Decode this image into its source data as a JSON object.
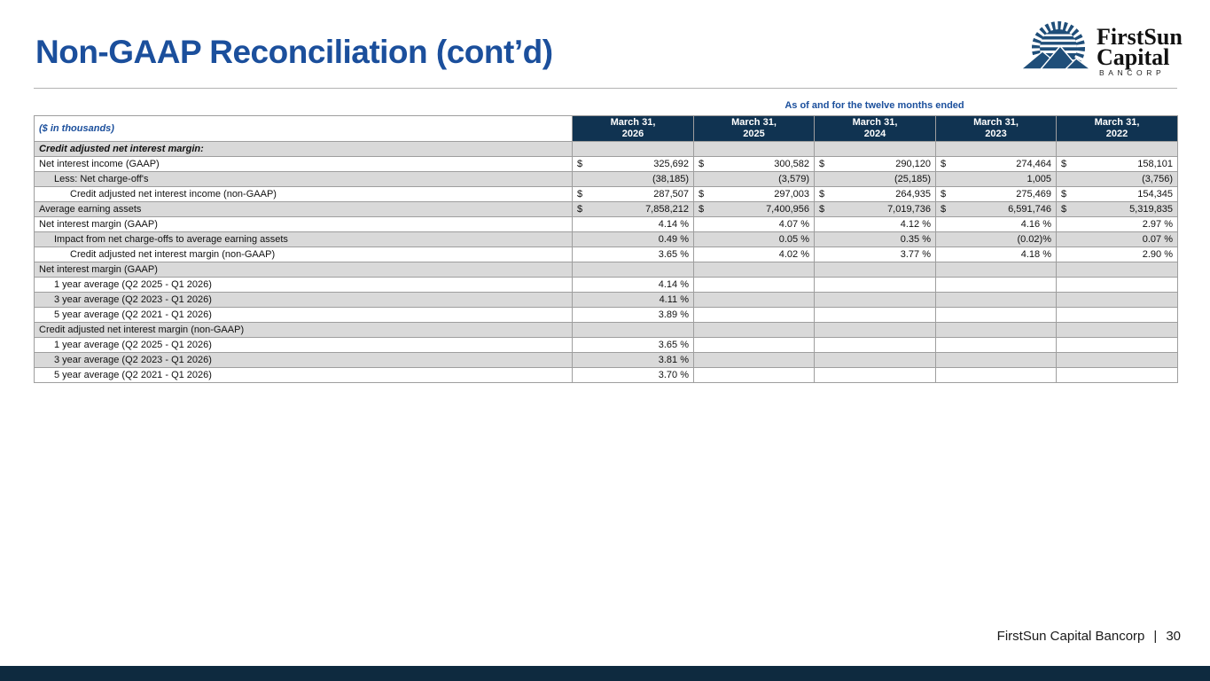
{
  "slide": {
    "title": "Non-GAAP Reconciliation (cont’d)",
    "footer_company": "FirstSun Capital Bancorp",
    "footer_separator": "|",
    "page_number": "30"
  },
  "logo": {
    "icon": "sun-over-mountains-icon",
    "name_line1": "FirstSun",
    "name_line2": "Capital",
    "name_line3": "BANCORP"
  },
  "colors": {
    "title_blue": "#1b4f9c",
    "table_header_navy": "#103351",
    "bottom_bar_navy": "#0e2a3f",
    "row_stripe_gray": "#d9d9d9",
    "grid_silver": "#9e9e9e",
    "logo_navy": "#1f4e79"
  },
  "table": {
    "caption": "As of and for the twelve months ended",
    "units_label": "($ in thousands)",
    "currency_symbol": "$",
    "columns": [
      {
        "line1": "March 31,",
        "line2": "2026"
      },
      {
        "line1": "March 31,",
        "line2": "2025"
      },
      {
        "line1": "March 31,",
        "line2": "2024"
      },
      {
        "line1": "March 31,",
        "line2": "2023"
      },
      {
        "line1": "March 31,",
        "line2": "2022"
      }
    ],
    "rows": [
      {
        "label": "Credit adjusted net interest margin:",
        "indent": 0,
        "bold_italic": true,
        "dollar": false,
        "values": [
          "",
          "",
          "",
          "",
          ""
        ]
      },
      {
        "label": "Net interest income (GAAP)",
        "indent": 0,
        "dollar": true,
        "black_verticals": true,
        "values": [
          "325,692",
          "300,582",
          "290,120",
          "274,464",
          "158,101"
        ]
      },
      {
        "label": "Less: Net charge-off's",
        "indent": 1,
        "dollar": false,
        "values": [
          "(38,185)",
          "(3,579)",
          "(25,185)",
          "1,005",
          "(3,756)"
        ]
      },
      {
        "label": "Credit adjusted net interest income (non-GAAP)",
        "indent": 2,
        "dollar": true,
        "black_verticals": true,
        "rule_top": true,
        "rule_bottom": "double",
        "values": [
          "287,507",
          "297,003",
          "264,935",
          "275,469",
          "154,345"
        ]
      },
      {
        "label": "Average earning assets",
        "indent": 0,
        "dollar": true,
        "black_verticals": true,
        "rule_bottom": "single",
        "values": [
          "7,858,212",
          "7,400,956",
          "7,019,736",
          "6,591,746",
          "5,319,835"
        ]
      },
      {
        "label": "Net interest margin (GAAP)",
        "indent": 0,
        "dollar": false,
        "values": [
          "4.14 %",
          "4.07 %",
          "4.12 %",
          "4.16 %",
          "2.97 %"
        ]
      },
      {
        "label": "Impact from net charge-offs to average earning assets",
        "indent": 1,
        "dollar": false,
        "values": [
          "0.49 %",
          "0.05 %",
          "0.35 %",
          "(0.02)%",
          "0.07 %"
        ]
      },
      {
        "label": "Credit adjusted net interest margin (non-GAAP)",
        "indent": 2,
        "dollar": false,
        "rule_top": true,
        "rule_bottom": "double",
        "values": [
          "3.65 %",
          "4.02 %",
          "3.77 %",
          "4.18 %",
          "2.90 %"
        ]
      },
      {
        "label": "Net interest margin (GAAP)",
        "indent": 0,
        "dollar": false,
        "values": [
          "",
          "",
          "",
          "",
          ""
        ]
      },
      {
        "label": "1 year average (Q2 2025 - Q1 2026)",
        "indent": 1,
        "dollar": false,
        "values": [
          "4.14 %",
          "",
          "",
          "",
          ""
        ]
      },
      {
        "label": "3 year average (Q2 2023 - Q1 2026)",
        "indent": 1,
        "dollar": false,
        "values": [
          "4.11 %",
          "",
          "",
          "",
          ""
        ]
      },
      {
        "label": "5 year average (Q2 2021 - Q1 2026)",
        "indent": 1,
        "dollar": false,
        "values": [
          "3.89 %",
          "",
          "",
          "",
          ""
        ]
      },
      {
        "label": "Credit adjusted net interest margin (non-GAAP)",
        "indent": 0,
        "dollar": false,
        "values": [
          "",
          "",
          "",
          "",
          ""
        ]
      },
      {
        "label": "1 year average (Q2 2025 - Q1 2026)",
        "indent": 1,
        "dollar": false,
        "values": [
          "3.65 %",
          "",
          "",
          "",
          ""
        ]
      },
      {
        "label": "3 year average (Q2 2023 - Q1 2026)",
        "indent": 1,
        "dollar": false,
        "values": [
          "3.81 %",
          "",
          "",
          "",
          ""
        ]
      },
      {
        "label": "5 year average (Q2 2021 - Q1 2026)",
        "indent": 1,
        "dollar": false,
        "values": [
          "3.70 %",
          "",
          "",
          "",
          ""
        ]
      }
    ]
  }
}
